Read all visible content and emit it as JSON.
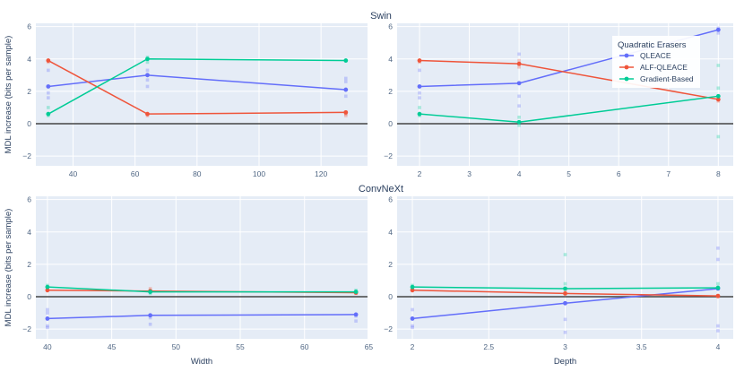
{
  "chart_data": [
    {
      "type": "line",
      "title": "Swin",
      "xlabel": "",
      "ylabel": "MDL increase (bits per sample)",
      "xlim": [
        28,
        135
      ],
      "ylim": [
        -2.6,
        6.2
      ],
      "xticks": [
        40,
        60,
        80,
        100,
        120
      ],
      "yticks": [
        -2,
        0,
        2,
        4,
        6
      ],
      "tick_labels": {
        "x": [
          "40",
          "60",
          "80",
          "100",
          "120"
        ],
        "y": [
          "−2",
          "0",
          "2",
          "4",
          "6"
        ]
      },
      "series": [
        {
          "name": "QLEACE",
          "x": [
            32,
            64,
            128
          ],
          "y": [
            2.3,
            3.0,
            2.1
          ],
          "samples": [
            [
              32,
              3.3
            ],
            [
              32,
              1.9
            ],
            [
              32,
              1.6
            ],
            [
              64,
              3.3
            ],
            [
              64,
              2.7
            ],
            [
              64,
              2.3
            ],
            [
              128,
              2.8
            ],
            [
              128,
              2.6
            ],
            [
              128,
              1.7
            ]
          ]
        },
        {
          "name": "ALF-QLEACE",
          "x": [
            32,
            64,
            128
          ],
          "y": [
            3.9,
            0.6,
            0.7
          ],
          "samples": [
            [
              32,
              3.8
            ],
            [
              64,
              0.5
            ],
            [
              128,
              0.6
            ],
            [
              128,
              0.5
            ]
          ]
        },
        {
          "name": "Gradient-Based",
          "x": [
            32,
            64,
            128
          ],
          "y": [
            0.6,
            4.0,
            3.9
          ],
          "samples": [
            [
              32,
              1.0
            ],
            [
              32,
              0.5
            ],
            [
              64,
              4.1
            ],
            [
              64,
              3.8
            ],
            [
              128,
              3.9
            ]
          ]
        }
      ]
    },
    {
      "type": "line",
      "title": "",
      "xlabel": "",
      "ylabel": "",
      "xlim": [
        1.55,
        8.3
      ],
      "ylim": [
        -2.6,
        6.2
      ],
      "xticks": [
        2,
        3,
        4,
        5,
        6,
        7,
        8
      ],
      "yticks": [
        -2,
        0,
        2,
        4,
        6
      ],
      "tick_labels": {
        "x": [
          "2",
          "3",
          "4",
          "5",
          "6",
          "7",
          "8"
        ],
        "y": [
          "−2",
          "0",
          "2",
          "4",
          "6"
        ]
      },
      "series": [
        {
          "name": "QLEACE",
          "x": [
            2,
            4,
            8
          ],
          "y": [
            2.3,
            2.5,
            5.8
          ],
          "samples": [
            [
              2,
              3.3
            ],
            [
              2,
              1.9
            ],
            [
              2,
              1.6
            ],
            [
              4,
              4.3
            ],
            [
              4,
              1.7
            ],
            [
              4,
              1.1
            ],
            [
              8,
              5.9
            ],
            [
              8,
              5.6
            ]
          ]
        },
        {
          "name": "ALF-QLEACE",
          "x": [
            2,
            4,
            8
          ],
          "y": [
            3.9,
            3.7,
            1.5
          ],
          "samples": [
            [
              2,
              3.8
            ],
            [
              4,
              3.9
            ],
            [
              4,
              3.5
            ],
            [
              8,
              1.4
            ]
          ]
        },
        {
          "name": "Gradient-Based",
          "x": [
            2,
            4,
            8
          ],
          "y": [
            0.6,
            0.1,
            1.7
          ],
          "samples": [
            [
              2,
              1.0
            ],
            [
              2,
              0.5
            ],
            [
              4,
              0.4
            ],
            [
              4,
              -0.1
            ],
            [
              8,
              3.6
            ],
            [
              8,
              2.2
            ],
            [
              8,
              -0.8
            ]
          ]
        }
      ],
      "legend": {
        "title": "Quadratic Erasers",
        "placement": "top-right",
        "items": [
          "QLEACE",
          "ALF-QLEACE",
          "Gradient-Based"
        ]
      }
    },
    {
      "type": "line",
      "title": "ConvNeXt",
      "xlabel": "Width",
      "ylabel": "MDL increase (bits per sample)",
      "xlim": [
        39.1,
        64.9
      ],
      "ylim": [
        -2.6,
        6.2
      ],
      "xticks": [
        40,
        45,
        50,
        55,
        60,
        65
      ],
      "yticks": [
        -2,
        0,
        2,
        4,
        6
      ],
      "tick_labels": {
        "x": [
          "40",
          "45",
          "50",
          "55",
          "60",
          "65"
        ],
        "y": [
          "−2",
          "0",
          "2",
          "4",
          "6"
        ]
      },
      "series": [
        {
          "name": "QLEACE",
          "x": [
            40,
            48,
            64
          ],
          "y": [
            -1.35,
            -1.15,
            -1.1
          ],
          "samples": [
            [
              40,
              -0.8
            ],
            [
              40,
              -1.0
            ],
            [
              40,
              -1.8
            ],
            [
              40,
              -1.9
            ],
            [
              48,
              -1.3
            ],
            [
              48,
              -1.7
            ],
            [
              64,
              -1.2
            ],
            [
              64,
              -1.5
            ]
          ]
        },
        {
          "name": "ALF-QLEACE",
          "x": [
            40,
            48,
            64
          ],
          "y": [
            0.4,
            0.35,
            0.25
          ],
          "samples": [
            [
              40,
              0.5
            ],
            [
              48,
              0.5
            ],
            [
              64,
              0.2
            ]
          ]
        },
        {
          "name": "Gradient-Based",
          "x": [
            40,
            48,
            64
          ],
          "y": [
            0.6,
            0.3,
            0.3
          ],
          "samples": [
            [
              40,
              0.7
            ],
            [
              48,
              0.2
            ],
            [
              64,
              0.4
            ]
          ]
        }
      ]
    },
    {
      "type": "line",
      "title": "",
      "xlabel": "Depth",
      "ylabel": "",
      "xlim": [
        1.9,
        4.1
      ],
      "ylim": [
        -2.6,
        6.2
      ],
      "xticks": [
        2,
        2.5,
        3,
        3.5,
        4
      ],
      "yticks": [
        -2,
        0,
        2,
        4,
        6
      ],
      "tick_labels": {
        "x": [
          "2",
          "2.5",
          "3",
          "3.5",
          "4"
        ],
        "y": [
          "−2",
          "0",
          "2",
          "4",
          "6"
        ]
      },
      "series": [
        {
          "name": "QLEACE",
          "x": [
            2,
            3,
            4
          ],
          "y": [
            -1.35,
            -0.4,
            0.5
          ],
          "samples": [
            [
              2,
              -0.8
            ],
            [
              2,
              -1.8
            ],
            [
              2,
              -1.9
            ],
            [
              3,
              -1.4
            ],
            [
              3,
              -2.2
            ],
            [
              4,
              3.0
            ],
            [
              4,
              2.3
            ],
            [
              4,
              -1.8
            ],
            [
              4,
              -2.1
            ]
          ]
        },
        {
          "name": "ALF-QLEACE",
          "x": [
            2,
            3,
            4
          ],
          "y": [
            0.4,
            0.2,
            0.05
          ],
          "samples": [
            [
              2,
              0.5
            ],
            [
              3,
              0.3
            ],
            [
              4,
              0.0
            ]
          ]
        },
        {
          "name": "Gradient-Based",
          "x": [
            2,
            3,
            4
          ],
          "y": [
            0.6,
            0.5,
            0.55
          ],
          "samples": [
            [
              2,
              0.7
            ],
            [
              3,
              0.8
            ],
            [
              3,
              2.6
            ],
            [
              4,
              0.8
            ]
          ]
        }
      ]
    }
  ],
  "colors": {
    "QLEACE": "#636efa",
    "ALF-QLEACE": "#ef553b",
    "Gradient-Based": "#00cc96",
    "plot_bg": "#e5ecf6",
    "grid": "#ffffff",
    "zero_line": "#444444",
    "text": "#2a3f5f"
  }
}
